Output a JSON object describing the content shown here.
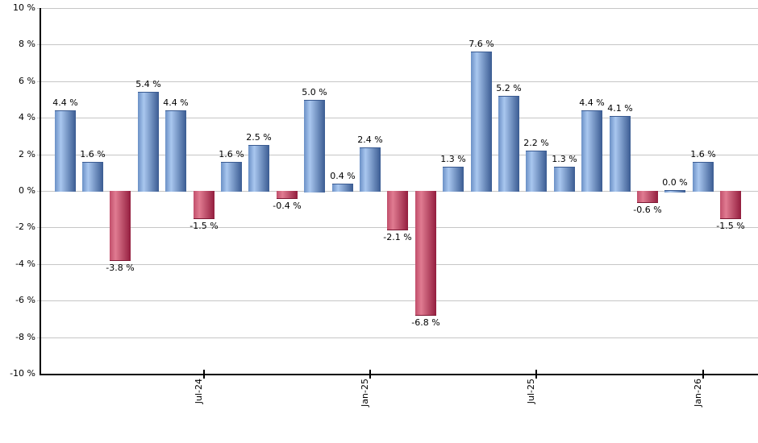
{
  "chart_data": {
    "type": "bar",
    "title": "",
    "xlabel": "",
    "ylabel": "",
    "ylim": [
      -10,
      10
    ],
    "y_tick_step": 2,
    "grid": true,
    "legend": "none",
    "y_tick_labels": [
      "10 %",
      "8 %",
      "6 %",
      "4 %",
      "2 %",
      "0 %",
      "-2 %",
      "-4 %",
      "-6 %",
      "-8 %",
      "-10 %"
    ],
    "y_tick_values": [
      10,
      8,
      6,
      4,
      2,
      0,
      -2,
      -4,
      -6,
      -8,
      -10
    ],
    "bars": [
      {
        "value": 4.4,
        "label": "4.4 %"
      },
      {
        "value": 1.6,
        "label": "1.6 %"
      },
      {
        "value": -3.8,
        "label": "-3.8 %"
      },
      {
        "value": 5.4,
        "label": "5.4 %"
      },
      {
        "value": 4.4,
        "label": "4.4 %"
      },
      {
        "value": -1.5,
        "label": "-1.5 %"
      },
      {
        "value": 1.6,
        "label": "1.6 %"
      },
      {
        "value": 2.5,
        "label": "2.5 %"
      },
      {
        "value": -0.4,
        "label": "-0.4 %"
      },
      {
        "value": 5.0,
        "label": "5.0 %"
      },
      {
        "value": 0.4,
        "label": "0.4 %"
      },
      {
        "value": 2.4,
        "label": "2.4 %"
      },
      {
        "value": -2.1,
        "label": "-2.1 %"
      },
      {
        "value": -6.8,
        "label": "-6.8 %"
      },
      {
        "value": 1.3,
        "label": "1.3 %"
      },
      {
        "value": 7.6,
        "label": "7.6 %"
      },
      {
        "value": 5.2,
        "label": "5.2 %"
      },
      {
        "value": 2.2,
        "label": "2.2 %"
      },
      {
        "value": 1.3,
        "label": "1.3 %"
      },
      {
        "value": 4.4,
        "label": "4.4 %"
      },
      {
        "value": 4.1,
        "label": "4.1 %"
      },
      {
        "value": -0.6,
        "label": "-0.6 %"
      },
      {
        "value": 0.0,
        "label": "0.0 %"
      },
      {
        "value": 1.6,
        "label": "1.6 %"
      },
      {
        "value": -1.5,
        "label": "-1.5 %"
      }
    ],
    "x_ticks": [
      {
        "index": 5,
        "label": "Jul-24"
      },
      {
        "index": 11,
        "label": "Jan-25"
      },
      {
        "index": 17,
        "label": "Jul-25"
      },
      {
        "index": 23,
        "label": "Jan-26"
      }
    ],
    "colors": {
      "positive_edge_left": "#6b90c6",
      "positive_highlight": "#a9c7ef",
      "positive_edge_right": "#3a5b92",
      "negative_edge_left": "#c14f6b",
      "negative_highlight": "#e07b91",
      "negative_edge_right": "#931d3e",
      "gridline": "#c6c6c6",
      "axis": "#000000",
      "label_text": "#000000",
      "background": "#ffffff"
    }
  }
}
